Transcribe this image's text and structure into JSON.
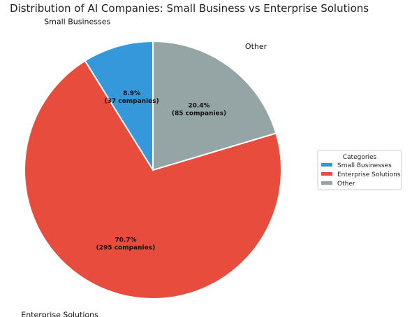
{
  "chart_data": {
    "type": "pie",
    "title": "Distribution of AI Companies: Small Business vs Enterprise Solutions",
    "start_angle": 90,
    "direction": "counterclockwise",
    "slices": [
      {
        "label": "Small Businesses",
        "value": 37,
        "percent": 8.9,
        "pct_label": "8.9%",
        "count_label": "(37 companies)",
        "color": "#3498db"
      },
      {
        "label": "Enterprise Solutions",
        "value": 295,
        "percent": 70.7,
        "pct_label": "70.7%",
        "count_label": "(295 companies)",
        "color": "#e74c3c"
      },
      {
        "label": "Other",
        "value": 85,
        "percent": 20.4,
        "pct_label": "20.4%",
        "count_label": "(85 companies)",
        "color": "#95a5a6"
      }
    ],
    "legend": {
      "title": "Categories",
      "placement": "right"
    }
  }
}
